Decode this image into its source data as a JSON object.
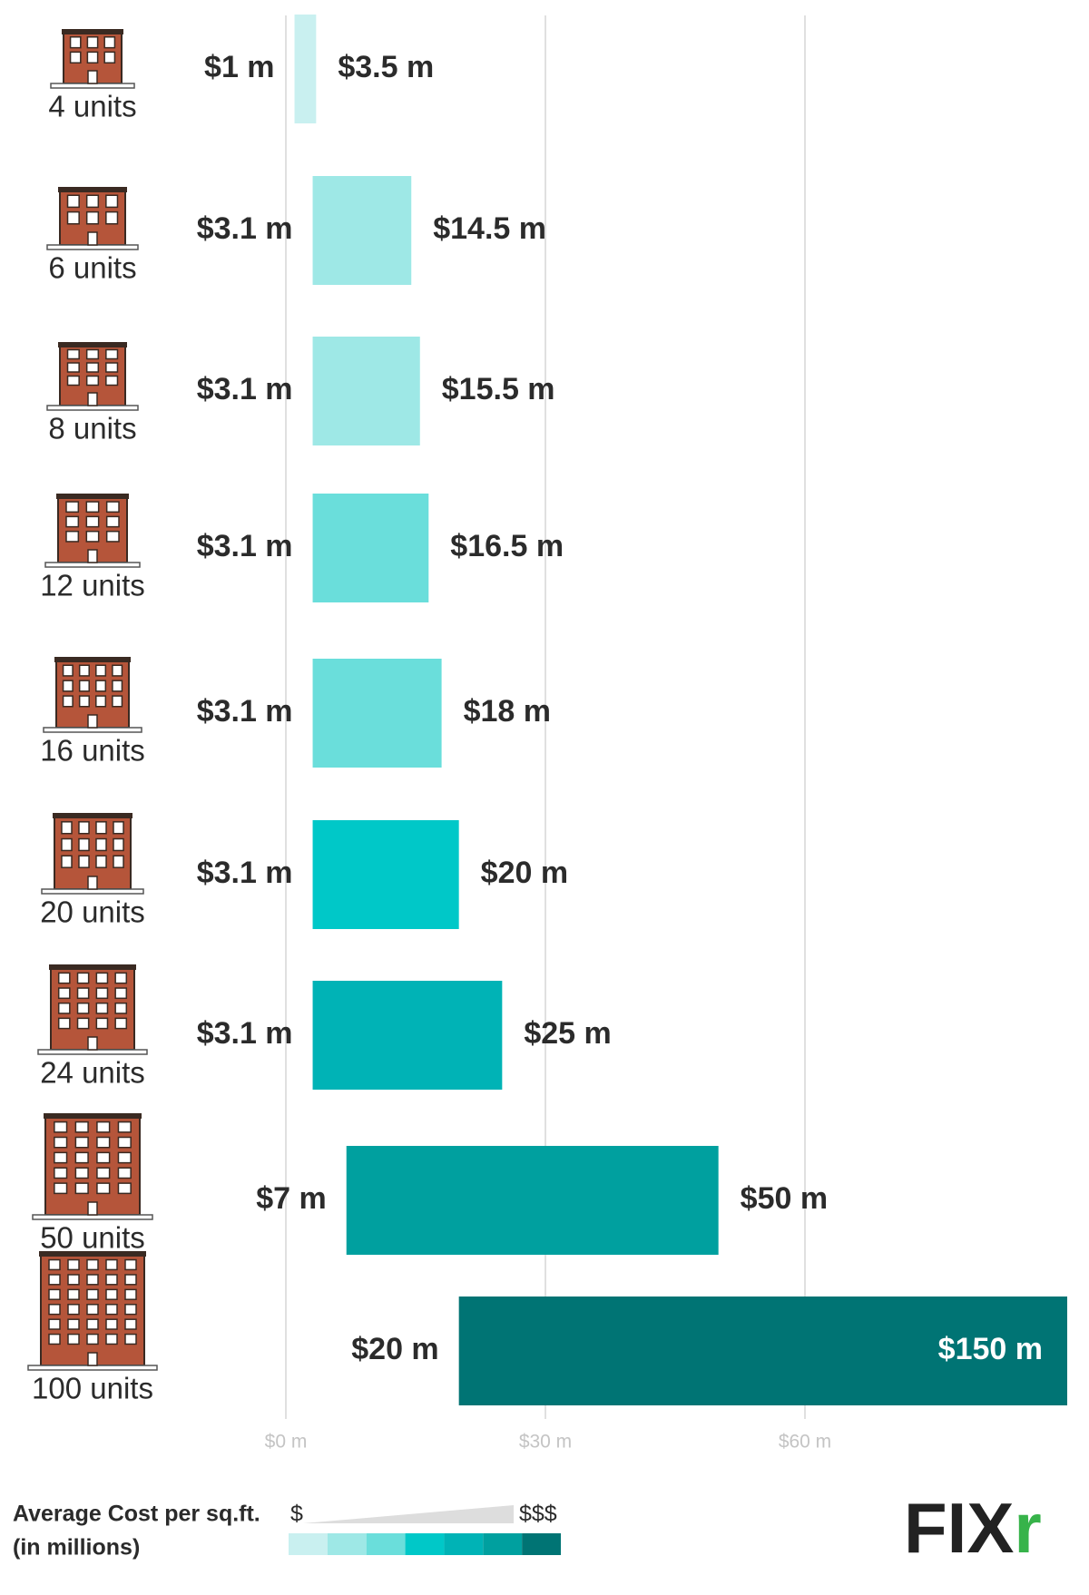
{
  "chart_data": {
    "type": "range-bar",
    "categories": [
      "4 units",
      "6 units",
      "8 units",
      "12 units",
      "16 units",
      "20 units",
      "24 units",
      "50 units",
      "100 units"
    ],
    "low": {
      "values": [
        1,
        3.1,
        3.1,
        3.1,
        3.1,
        3.1,
        3.1,
        7,
        20
      ],
      "value_labels": [
        "$1 m",
        "$3.1 m",
        "$3.1 m",
        "$3.1 m",
        "$3.1 m",
        "$3.1 m",
        "$3.1 m",
        "$7 m",
        "$20 m"
      ]
    },
    "high": {
      "values": [
        3.5,
        14.5,
        15.5,
        16.5,
        18,
        20,
        25,
        50,
        150
      ],
      "value_labels": [
        "$3.5 m",
        "$14.5 m",
        "$15.5 m",
        "$16.5 m",
        "$18 m",
        "$20 m",
        "$25 m",
        "$50 m",
        "$150 m"
      ]
    },
    "colors": [
      "#c9f0f0",
      "#9ee8e6",
      "#9ee8e6",
      "#6adedb",
      "#6adedb",
      "#00c8c8",
      "#00b3b6",
      "#00a09f",
      "#007474"
    ],
    "xlim": [
      0,
      90
    ],
    "xticks": [
      {
        "value": 0,
        "label": "$0 m"
      },
      {
        "value": 30,
        "label": "$30 m"
      },
      {
        "value": 60,
        "label": "$60 m"
      }
    ],
    "grid": true,
    "legend": {
      "title": "Average Cost per sq.ft.",
      "subtitle": "(in millions)",
      "low_label": "$",
      "high_label": "$$$",
      "colors": [
        "#c9f0f0",
        "#9ee8e6",
        "#6adedb",
        "#00c8c8",
        "#00b3b6",
        "#00a09f",
        "#007474"
      ]
    }
  },
  "logo": [
    "FIX",
    "r"
  ]
}
